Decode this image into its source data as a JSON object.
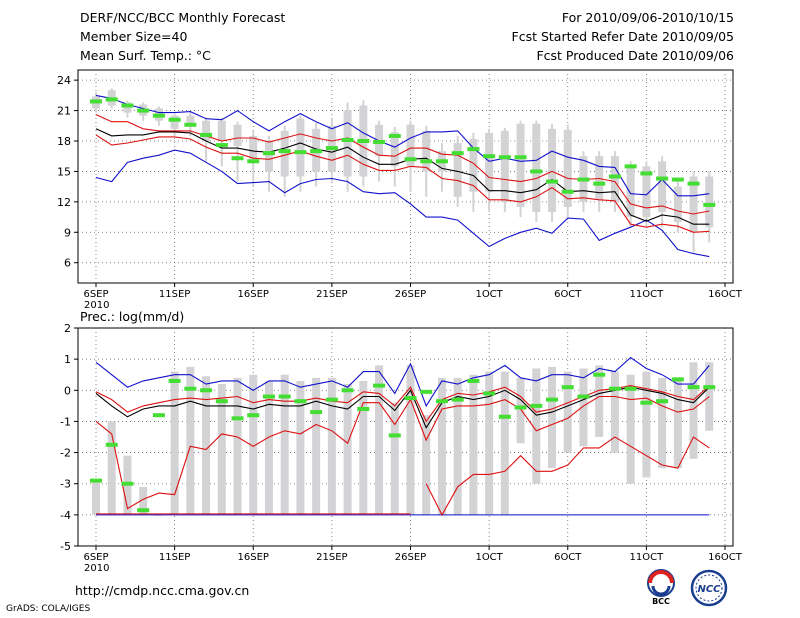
{
  "header": {
    "title": "DERF/NCC/BCC Monthly Forecast",
    "member_size": "Member Size=40",
    "variable": "Mean Surf. Temp.: °C",
    "period": "For 2010/09/06-2010/10/15",
    "start_date": "Fcst Started Refer Date 2010/09/05",
    "produced_date": "Fcst Produced Date 2010/09/06"
  },
  "footer": {
    "url": "http://cmdp.ncc.cma.gov.cn",
    "credit": "GrADS: COLA/IGES",
    "logo_bcc": "BCC",
    "logo_ncc": "NCC"
  },
  "colors": {
    "box": "#d3d3d6",
    "ensemble_mean": "#000000",
    "spread": "#dd1111",
    "envelope": "#1111cc",
    "observed": "#44dd33",
    "grid": "#666666"
  },
  "chart_data": [
    {
      "type": "box",
      "name": "temperature",
      "title": "Mean Surf. Temp.: °C",
      "x_tick_labels": [
        "6SEP",
        "11SEP",
        "16SEP",
        "21SEP",
        "26SEP",
        "1OCT",
        "6OCT",
        "11OCT",
        "16OCT"
      ],
      "x_year_label": "2010",
      "x_range": [
        0,
        40
      ],
      "ylim": [
        4,
        25
      ],
      "y_ticks": [
        6,
        9,
        12,
        15,
        18,
        21,
        24
      ],
      "days": [
        0,
        1,
        2,
        3,
        4,
        5,
        6,
        7,
        8,
        9,
        10,
        11,
        12,
        13,
        14,
        15,
        16,
        17,
        18,
        19,
        20,
        21,
        22,
        23,
        24,
        25,
        26,
        27,
        28,
        29,
        30,
        31,
        32,
        33,
        34,
        35,
        36,
        37,
        38,
        39
      ],
      "envelope_max": [
        22.5,
        22.2,
        21.6,
        21.2,
        20.8,
        20.8,
        20.9,
        20.2,
        20.1,
        21.0,
        19.9,
        19.0,
        19.9,
        20.7,
        19.9,
        19.2,
        19.8,
        18.8,
        18.0,
        17.4,
        18.3,
        18.9,
        18.9,
        19.0,
        17.3,
        16.0,
        16.3,
        16.0,
        16.1,
        17.0,
        16.4,
        16.1,
        15.5,
        15.4,
        12.8,
        12.7,
        14.2,
        12.6,
        12.6,
        12.8
      ],
      "envelope_min": [
        14.4,
        14.0,
        15.9,
        16.3,
        16.6,
        17.1,
        16.8,
        15.9,
        15.0,
        13.8,
        13.9,
        14.0,
        12.9,
        13.8,
        14.2,
        14.3,
        14.0,
        13.0,
        12.8,
        12.9,
        11.8,
        10.5,
        10.5,
        10.2,
        8.9,
        7.6,
        8.4,
        9.0,
        9.4,
        8.9,
        10.4,
        10.3,
        8.2,
        8.9,
        9.5,
        10.2,
        9.2,
        7.3,
        6.9,
        6.6
      ],
      "spread_upper": [
        20.6,
        19.9,
        19.9,
        19.2,
        19.0,
        19.0,
        19.0,
        18.5,
        18.0,
        18.3,
        18.3,
        17.9,
        18.3,
        18.7,
        18.3,
        18.0,
        18.3,
        17.4,
        16.6,
        16.5,
        17.3,
        17.3,
        16.7,
        16.6,
        15.8,
        14.4,
        14.2,
        14.0,
        14.3,
        15.0,
        14.3,
        14.2,
        14.3,
        14.0,
        11.8,
        11.4,
        11.6,
        11.1,
        10.8,
        11.1
      ],
      "ensemble_mean": [
        19.2,
        18.5,
        18.6,
        18.6,
        18.9,
        18.9,
        18.8,
        18.0,
        17.3,
        17.3,
        17.0,
        16.9,
        17.3,
        17.8,
        17.2,
        16.9,
        17.4,
        16.4,
        15.7,
        15.7,
        16.2,
        16.3,
        15.3,
        15.0,
        14.6,
        13.1,
        13.1,
        12.9,
        13.2,
        14.2,
        13.0,
        13.1,
        12.9,
        13.0,
        10.7,
        10.1,
        10.7,
        10.5,
        9.8,
        9.8
      ],
      "spread_lower": [
        18.6,
        17.6,
        17.8,
        18.1,
        18.4,
        18.4,
        18.2,
        17.4,
        16.8,
        16.8,
        16.3,
        16.2,
        16.6,
        17.0,
        16.5,
        16.1,
        16.6,
        15.7,
        15.1,
        15.1,
        15.5,
        15.4,
        14.3,
        14.1,
        13.6,
        12.2,
        12.2,
        12.0,
        12.5,
        13.4,
        12.3,
        12.4,
        12.2,
        12.1,
        9.8,
        9.5,
        9.8,
        9.6,
        9.0,
        9.1
      ],
      "box_high": [
        22.4,
        23.0,
        21.8,
        21.6,
        21.2,
        20.5,
        20.5,
        20.0,
        20.0,
        19.6,
        18.5,
        18.0,
        19.0,
        20.2,
        19.2,
        19.5,
        21.0,
        21.5,
        19.6,
        18.9,
        19.6,
        19.0,
        17.0,
        17.8,
        18.2,
        18.8,
        19.0,
        19.7,
        19.7,
        19.2,
        19.1,
        16.5,
        16.5,
        16.5,
        15.5,
        15.5,
        16.0,
        13.5,
        14.5,
        14.5
      ],
      "box_low": [
        21.2,
        21.5,
        20.8,
        20.5,
        20.0,
        19.2,
        19.8,
        18.0,
        18.0,
        17.5,
        16.0,
        15.0,
        14.5,
        14.5,
        15.0,
        15.0,
        14.5,
        14.5,
        16.5,
        15.5,
        15.5,
        15.0,
        15.0,
        12.5,
        13.0,
        13.0,
        12.0,
        11.5,
        11.0,
        11.0,
        11.5,
        12.0,
        12.2,
        12.0,
        10.5,
        10.5,
        11.0,
        10.0,
        9.0,
        9.5
      ],
      "whisker_high": [
        22.8,
        23.2,
        22.0,
        21.8,
        21.4,
        20.7,
        20.8,
        20.3,
        20.3,
        19.9,
        19.0,
        18.5,
        19.5,
        20.5,
        19.8,
        20.2,
        21.8,
        22.0,
        20.0,
        19.4,
        20.0,
        19.5,
        17.8,
        18.5,
        18.8,
        19.2,
        19.3,
        20.0,
        20.0,
        19.7,
        19.6,
        17.0,
        17.0,
        17.0,
        16.0,
        16.0,
        16.5,
        14.0,
        15.0,
        15.0
      ],
      "whisker_low": [
        20.8,
        21.2,
        20.3,
        20.0,
        19.5,
        18.5,
        18.5,
        16.0,
        15.5,
        14.0,
        13.5,
        13.0,
        12.5,
        13.0,
        13.5,
        14.0,
        13.0,
        13.5,
        14.0,
        13.5,
        13.0,
        12.5,
        13.0,
        11.5,
        11.0,
        11.0,
        11.0,
        10.5,
        10.0,
        10.0,
        10.5,
        11.0,
        11.0,
        11.0,
        9.5,
        9.5,
        9.5,
        9.0,
        7.0,
        8.0
      ],
      "observed": [
        21.9,
        22.1,
        21.5,
        21.0,
        20.5,
        20.1,
        19.6,
        18.6,
        17.6,
        16.3,
        16.0,
        16.8,
        17.0,
        16.9,
        17.0,
        17.3,
        18.1,
        18.0,
        17.9,
        18.5,
        16.2,
        16.0,
        16.0,
        16.8,
        17.2,
        16.5,
        16.4,
        16.4,
        15.0,
        14.0,
        13.0,
        14.2,
        13.8,
        14.5,
        15.5,
        14.8,
        14.3,
        14.2,
        13.8,
        11.7
      ]
    },
    {
      "type": "box",
      "name": "precipitation",
      "title": "Prec.: log(mm/d)",
      "x_tick_labels": [
        "6SEP",
        "11SEP",
        "16SEP",
        "21SEP",
        "26SEP",
        "1OCT",
        "6OCT",
        "11OCT",
        "16OCT"
      ],
      "x_year_label": "2010",
      "x_range": [
        0,
        40
      ],
      "ylim": [
        -5,
        2
      ],
      "y_ticks": [
        -5,
        -4,
        -3,
        -2,
        -1,
        0,
        1,
        2
      ],
      "days": [
        0,
        1,
        2,
        3,
        4,
        5,
        6,
        7,
        8,
        9,
        10,
        11,
        12,
        13,
        14,
        15,
        16,
        17,
        18,
        19,
        20,
        21,
        22,
        23,
        24,
        25,
        26,
        27,
        28,
        29,
        30,
        31,
        32,
        33,
        34,
        35,
        36,
        37,
        38,
        39
      ],
      "envelope_max": [
        0.9,
        0.5,
        0.1,
        0.3,
        0.4,
        0.5,
        0.5,
        0.2,
        0.3,
        0.3,
        0.0,
        0.3,
        0.3,
        0.1,
        0.2,
        0.3,
        0.1,
        0.6,
        0.6,
        -0.1,
        0.85,
        -0.5,
        0.3,
        0.2,
        0.4,
        0.5,
        0.8,
        0.4,
        0.3,
        0.5,
        0.5,
        0.4,
        0.7,
        0.6,
        1.05,
        0.7,
        0.5,
        0.2,
        0.2,
        0.8
      ],
      "ensemble_mean": [
        -0.1,
        -0.5,
        -0.85,
        -0.6,
        -0.5,
        -0.5,
        -0.35,
        -0.5,
        -0.5,
        -0.5,
        -0.6,
        -0.45,
        -0.5,
        -0.5,
        -0.35,
        -0.5,
        -0.6,
        -0.2,
        -0.2,
        -0.65,
        0.0,
        -1.2,
        -0.4,
        -0.2,
        -0.3,
        -0.2,
        0.0,
        -0.3,
        -0.8,
        -0.7,
        -0.5,
        -0.3,
        -0.1,
        0.0,
        0.1,
        0.0,
        -0.1,
        -0.3,
        -0.4,
        0.1
      ],
      "spread_upper": [
        -0.05,
        -0.3,
        -0.7,
        -0.5,
        -0.4,
        -0.3,
        -0.25,
        -0.3,
        -0.25,
        -0.2,
        -0.4,
        -0.3,
        -0.35,
        -0.35,
        -0.25,
        -0.35,
        -0.4,
        -0.05,
        -0.1,
        -0.5,
        0.1,
        -1.0,
        -0.3,
        -0.1,
        -0.15,
        -0.05,
        0.1,
        -0.2,
        -0.7,
        -0.6,
        -0.4,
        -0.2,
        0.0,
        0.05,
        0.15,
        0.05,
        -0.05,
        -0.2,
        -0.3,
        0.15
      ],
      "spread_lower": [
        -1.0,
        -1.4,
        -3.8,
        -3.5,
        -3.3,
        -3.35,
        -1.8,
        -1.9,
        -1.4,
        -1.5,
        -1.8,
        -1.5,
        -1.3,
        -1.4,
        -1.1,
        -1.3,
        -1.7,
        -0.4,
        -0.4,
        -1.1,
        -0.3,
        -1.6,
        -0.6,
        -0.5,
        -0.5,
        -0.45,
        -0.3,
        -0.6,
        -1.3,
        -1.1,
        -0.9,
        -0.5,
        -0.2,
        -0.2,
        -0.3,
        -0.25,
        -0.5,
        -0.7,
        -0.6,
        -0.2
      ],
      "lower_bound": [
        null,
        null,
        null,
        null,
        null,
        null,
        null,
        null,
        null,
        null,
        null,
        null,
        null,
        null,
        null,
        null,
        null,
        null,
        null,
        null,
        null,
        -3.0,
        -4.0,
        -3.1,
        -2.7,
        -2.7,
        -2.6,
        -2.1,
        -2.6,
        -2.6,
        -2.4,
        -1.85,
        -1.85,
        -1.5,
        -1.8,
        -2.1,
        -2.4,
        -2.5,
        -1.5,
        -1.85
      ],
      "box_high": [
        -2.9,
        -1.0,
        -2.1,
        -3.1,
        -4.0,
        0.6,
        0.75,
        0.45,
        0.2,
        0.4,
        0.5,
        0.3,
        0.5,
        0.3,
        0.4,
        0.4,
        0.2,
        0.3,
        0.8,
        -0.4,
        0.8,
        -0.8,
        0.4,
        0.4,
        0.5,
        0.6,
        0.6,
        0.4,
        0.7,
        0.75,
        0.6,
        0.7,
        0.8,
        0.6,
        0.5,
        0.6,
        0.4,
        0.4,
        0.9,
        0.9
      ],
      "box_low": [
        -4.0,
        -4.0,
        -4.0,
        -4.0,
        -4.0,
        -4.0,
        -4.0,
        -4.0,
        -4.0,
        -4.0,
        -4.0,
        -4.0,
        -4.0,
        -4.0,
        -4.0,
        -4.0,
        -4.0,
        -4.0,
        -4.0,
        -4.0,
        -4.0,
        -4.0,
        -4.0,
        -4.0,
        -4.0,
        -4.0,
        -4.0,
        -1.7,
        -3.0,
        -2.5,
        -2.0,
        -1.8,
        -1.5,
        -2.0,
        -3.0,
        -2.8,
        -2.5,
        -2.5,
        -2.2,
        -1.3
      ],
      "observed": [
        -2.9,
        -1.75,
        -3.0,
        -3.85,
        -0.8,
        0.3,
        0.05,
        0.0,
        -0.35,
        -0.9,
        -0.8,
        -0.2,
        -0.2,
        -0.35,
        -0.7,
        -0.3,
        0.0,
        -0.6,
        0.15,
        -1.45,
        -0.25,
        -0.05,
        -0.35,
        -0.3,
        0.3,
        -0.1,
        -0.85,
        -0.55,
        -0.5,
        -0.3,
        0.1,
        -0.2,
        0.5,
        0.05,
        0.05,
        -0.4,
        -0.35,
        0.35,
        0.1,
        0.1
      ]
    }
  ]
}
